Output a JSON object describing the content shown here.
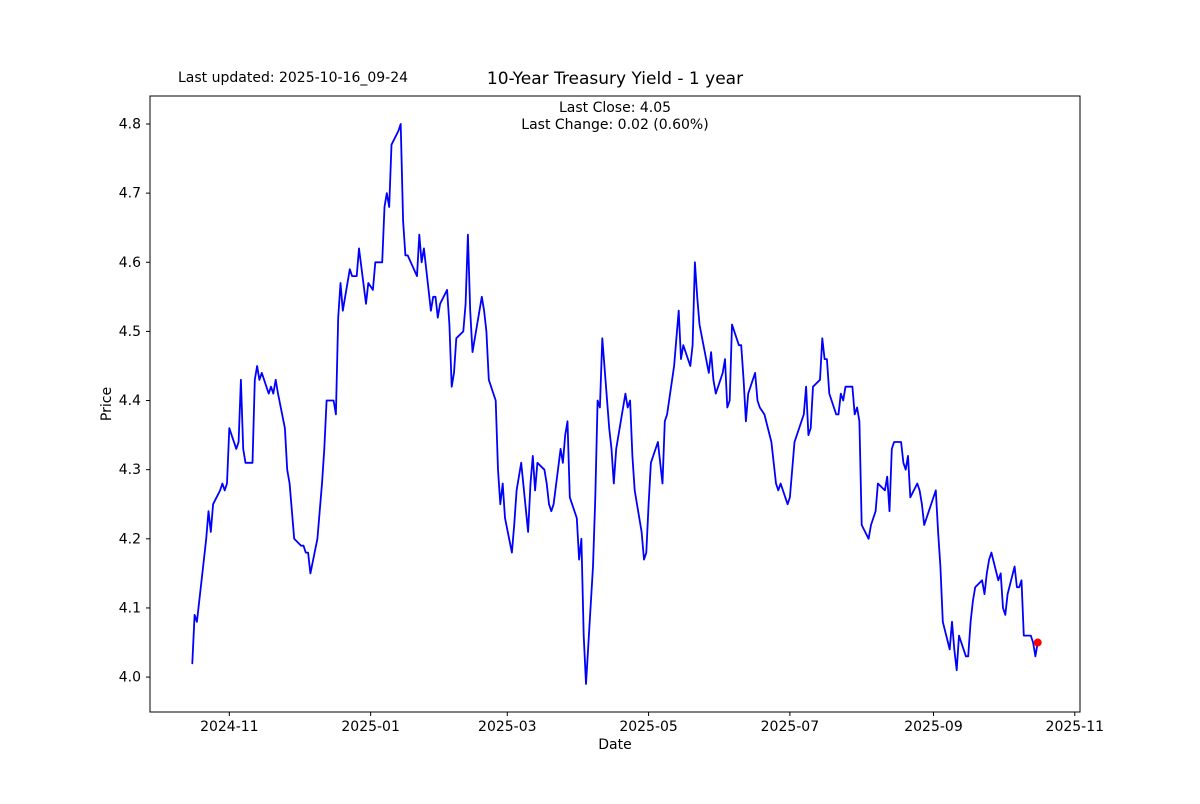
{
  "figure": {
    "annotation_last_updated": "Last updated: 2025-10-16_09-24"
  },
  "chart_data": {
    "type": "line",
    "title": "10-Year Treasury Yield - 1 year",
    "subtitle_lines": [
      "Last Close: 4.05",
      "Last Change: 0.02 (0.60%)"
    ],
    "xlabel": "Date",
    "ylabel": "Price",
    "last_close": "4.05",
    "last_change": "0.02",
    "last_change_pct": "0.60%",
    "grid": false,
    "legend_position": "none",
    "line_color": "#0000ff",
    "line_width": 1.8,
    "marker": {
      "color": "#ff0000",
      "radius": 4,
      "at": "last-point"
    },
    "axis_color": "#000000",
    "x_unit_days_since": "2024-10-16",
    "xlim_days": [
      -18.25,
      383.25
    ],
    "ylim": [
      3.9495,
      4.8405
    ],
    "x_ticks": {
      "days": [
        16,
        77,
        136,
        197,
        258,
        320,
        381
      ],
      "labels": [
        "2024-11",
        "2025-01",
        "2025-03",
        "2025-05",
        "2025-07",
        "2025-09",
        "2025-11"
      ]
    },
    "y_ticks": {
      "values": [
        4.0,
        4.1,
        4.2,
        4.3,
        4.4,
        4.5,
        4.6,
        4.7,
        4.8
      ],
      "labels": [
        "4.0",
        "4.1",
        "4.2",
        "4.3",
        "4.4",
        "4.5",
        "4.6",
        "4.7",
        "4.8"
      ]
    },
    "points_day_price": [
      [
        0,
        4.02
      ],
      [
        1,
        4.09
      ],
      [
        2,
        4.08
      ],
      [
        5,
        4.17
      ],
      [
        6,
        4.2
      ],
      [
        7,
        4.24
      ],
      [
        8,
        4.21
      ],
      [
        9,
        4.25
      ],
      [
        12,
        4.27
      ],
      [
        13,
        4.28
      ],
      [
        14,
        4.27
      ],
      [
        15,
        4.28
      ],
      [
        16,
        4.36
      ],
      [
        19,
        4.33
      ],
      [
        20,
        4.34
      ],
      [
        21,
        4.43
      ],
      [
        22,
        4.33
      ],
      [
        23,
        4.31
      ],
      [
        26,
        4.31
      ],
      [
        27,
        4.43
      ],
      [
        28,
        4.45
      ],
      [
        29,
        4.43
      ],
      [
        30,
        4.44
      ],
      [
        33,
        4.41
      ],
      [
        34,
        4.42
      ],
      [
        35,
        4.41
      ],
      [
        36,
        4.43
      ],
      [
        37,
        4.41
      ],
      [
        40,
        4.36
      ],
      [
        41,
        4.3
      ],
      [
        42,
        4.28
      ],
      [
        44,
        4.2
      ],
      [
        47,
        4.19
      ],
      [
        48,
        4.19
      ],
      [
        49,
        4.18
      ],
      [
        50,
        4.18
      ],
      [
        51,
        4.15
      ],
      [
        54,
        4.2
      ],
      [
        55,
        4.24
      ],
      [
        56,
        4.28
      ],
      [
        57,
        4.33
      ],
      [
        58,
        4.4
      ],
      [
        61,
        4.4
      ],
      [
        62,
        4.38
      ],
      [
        63,
        4.52
      ],
      [
        64,
        4.57
      ],
      [
        65,
        4.53
      ],
      [
        68,
        4.59
      ],
      [
        69,
        4.58
      ],
      [
        71,
        4.58
      ],
      [
        72,
        4.62
      ],
      [
        75,
        4.54
      ],
      [
        76,
        4.57
      ],
      [
        78,
        4.56
      ],
      [
        79,
        4.6
      ],
      [
        82,
        4.6
      ],
      [
        83,
        4.68
      ],
      [
        84,
        4.7
      ],
      [
        85,
        4.68
      ],
      [
        86,
        4.77
      ],
      [
        89,
        4.79
      ],
      [
        90,
        4.8
      ],
      [
        91,
        4.66
      ],
      [
        92,
        4.61
      ],
      [
        93,
        4.61
      ],
      [
        97,
        4.58
      ],
      [
        98,
        4.64
      ],
      [
        99,
        4.6
      ],
      [
        100,
        4.62
      ],
      [
        103,
        4.53
      ],
      [
        104,
        4.55
      ],
      [
        105,
        4.55
      ],
      [
        106,
        4.52
      ],
      [
        107,
        4.54
      ],
      [
        110,
        4.56
      ],
      [
        111,
        4.51
      ],
      [
        112,
        4.42
      ],
      [
        113,
        4.44
      ],
      [
        114,
        4.49
      ],
      [
        117,
        4.5
      ],
      [
        118,
        4.54
      ],
      [
        119,
        4.64
      ],
      [
        120,
        4.53
      ],
      [
        121,
        4.47
      ],
      [
        125,
        4.55
      ],
      [
        126,
        4.53
      ],
      [
        127,
        4.5
      ],
      [
        128,
        4.43
      ],
      [
        131,
        4.4
      ],
      [
        132,
        4.3
      ],
      [
        133,
        4.25
      ],
      [
        134,
        4.28
      ],
      [
        135,
        4.23
      ],
      [
        138,
        4.18
      ],
      [
        139,
        4.22
      ],
      [
        140,
        4.27
      ],
      [
        141,
        4.29
      ],
      [
        142,
        4.31
      ],
      [
        145,
        4.21
      ],
      [
        146,
        4.28
      ],
      [
        147,
        4.32
      ],
      [
        148,
        4.27
      ],
      [
        149,
        4.31
      ],
      [
        152,
        4.3
      ],
      [
        153,
        4.28
      ],
      [
        154,
        4.25
      ],
      [
        155,
        4.24
      ],
      [
        156,
        4.25
      ],
      [
        159,
        4.33
      ],
      [
        160,
        4.31
      ],
      [
        161,
        4.35
      ],
      [
        162,
        4.37
      ],
      [
        163,
        4.26
      ],
      [
        166,
        4.23
      ],
      [
        167,
        4.17
      ],
      [
        168,
        4.2
      ],
      [
        169,
        4.06
      ],
      [
        170,
        3.99
      ],
      [
        173,
        4.16
      ],
      [
        174,
        4.26
      ],
      [
        175,
        4.4
      ],
      [
        176,
        4.39
      ],
      [
        177,
        4.49
      ],
      [
        180,
        4.36
      ],
      [
        181,
        4.33
      ],
      [
        182,
        4.28
      ],
      [
        183,
        4.33
      ],
      [
        187,
        4.41
      ],
      [
        188,
        4.39
      ],
      [
        189,
        4.4
      ],
      [
        190,
        4.32
      ],
      [
        191,
        4.27
      ],
      [
        194,
        4.21
      ],
      [
        195,
        4.17
      ],
      [
        196,
        4.18
      ],
      [
        197,
        4.25
      ],
      [
        198,
        4.31
      ],
      [
        201,
        4.34
      ],
      [
        202,
        4.31
      ],
      [
        203,
        4.28
      ],
      [
        204,
        4.37
      ],
      [
        205,
        4.38
      ],
      [
        208,
        4.45
      ],
      [
        209,
        4.49
      ],
      [
        210,
        4.53
      ],
      [
        211,
        4.46
      ],
      [
        212,
        4.48
      ],
      [
        215,
        4.45
      ],
      [
        216,
        4.48
      ],
      [
        217,
        4.6
      ],
      [
        218,
        4.55
      ],
      [
        219,
        4.51
      ],
      [
        223,
        4.44
      ],
      [
        224,
        4.47
      ],
      [
        225,
        4.43
      ],
      [
        226,
        4.41
      ],
      [
        229,
        4.44
      ],
      [
        230,
        4.46
      ],
      [
        231,
        4.39
      ],
      [
        232,
        4.4
      ],
      [
        233,
        4.51
      ],
      [
        236,
        4.48
      ],
      [
        237,
        4.48
      ],
      [
        238,
        4.43
      ],
      [
        239,
        4.37
      ],
      [
        240,
        4.41
      ],
      [
        243,
        4.44
      ],
      [
        244,
        4.4
      ],
      [
        245,
        4.39
      ],
      [
        247,
        4.38
      ],
      [
        250,
        4.34
      ],
      [
        251,
        4.31
      ],
      [
        252,
        4.28
      ],
      [
        253,
        4.27
      ],
      [
        254,
        4.28
      ],
      [
        257,
        4.25
      ],
      [
        258,
        4.26
      ],
      [
        259,
        4.3
      ],
      [
        260,
        4.34
      ],
      [
        264,
        4.38
      ],
      [
        265,
        4.42
      ],
      [
        266,
        4.35
      ],
      [
        267,
        4.36
      ],
      [
        268,
        4.42
      ],
      [
        271,
        4.43
      ],
      [
        272,
        4.49
      ],
      [
        273,
        4.46
      ],
      [
        274,
        4.46
      ],
      [
        275,
        4.41
      ],
      [
        278,
        4.38
      ],
      [
        279,
        4.38
      ],
      [
        280,
        4.41
      ],
      [
        281,
        4.4
      ],
      [
        282,
        4.42
      ],
      [
        285,
        4.42
      ],
      [
        286,
        4.38
      ],
      [
        287,
        4.39
      ],
      [
        288,
        4.37
      ],
      [
        289,
        4.22
      ],
      [
        292,
        4.2
      ],
      [
        293,
        4.22
      ],
      [
        294,
        4.23
      ],
      [
        295,
        4.24
      ],
      [
        296,
        4.28
      ],
      [
        299,
        4.27
      ],
      [
        300,
        4.29
      ],
      [
        301,
        4.24
      ],
      [
        302,
        4.33
      ],
      [
        303,
        4.34
      ],
      [
        306,
        4.34
      ],
      [
        307,
        4.31
      ],
      [
        308,
        4.3
      ],
      [
        309,
        4.32
      ],
      [
        310,
        4.26
      ],
      [
        313,
        4.28
      ],
      [
        314,
        4.27
      ],
      [
        315,
        4.25
      ],
      [
        316,
        4.22
      ],
      [
        317,
        4.23
      ],
      [
        321,
        4.27
      ],
      [
        322,
        4.21
      ],
      [
        323,
        4.16
      ],
      [
        324,
        4.08
      ],
      [
        327,
        4.04
      ],
      [
        328,
        4.08
      ],
      [
        329,
        4.04
      ],
      [
        330,
        4.01
      ],
      [
        331,
        4.06
      ],
      [
        334,
        4.03
      ],
      [
        335,
        4.03
      ],
      [
        336,
        4.08
      ],
      [
        337,
        4.11
      ],
      [
        338,
        4.13
      ],
      [
        341,
        4.14
      ],
      [
        342,
        4.12
      ],
      [
        343,
        4.15
      ],
      [
        344,
        4.17
      ],
      [
        345,
        4.18
      ],
      [
        348,
        4.14
      ],
      [
        349,
        4.15
      ],
      [
        350,
        4.1
      ],
      [
        351,
        4.09
      ],
      [
        352,
        4.12
      ],
      [
        355,
        4.16
      ],
      [
        356,
        4.13
      ],
      [
        357,
        4.13
      ],
      [
        358,
        4.14
      ],
      [
        359,
        4.06
      ],
      [
        362,
        4.06
      ],
      [
        363,
        4.05
      ],
      [
        364,
        4.03
      ],
      [
        365,
        4.05
      ]
    ]
  }
}
